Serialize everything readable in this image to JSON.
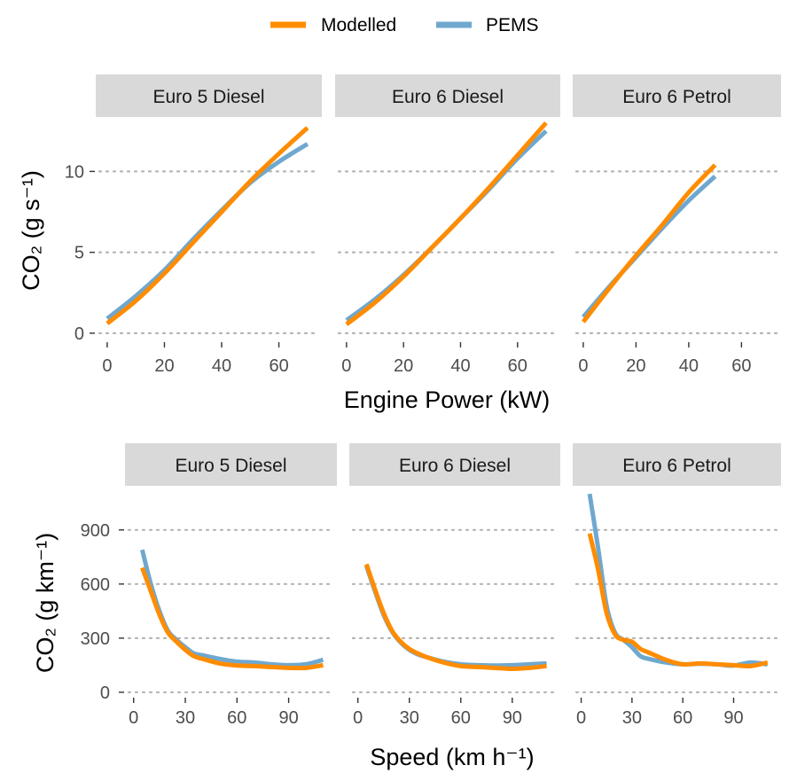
{
  "legend": {
    "items": [
      {
        "label": "Modelled",
        "color": "#ff8c00"
      },
      {
        "label": "PEMS",
        "color": "#6fa8cf"
      }
    ]
  },
  "chart_data": [
    {
      "type": "line",
      "xlabel": "Engine Power (kW)",
      "ylabel": "CO₂ (g s⁻¹)",
      "xlim": [
        -4,
        75
      ],
      "ylim": [
        -0.5,
        13.2
      ],
      "xticks": [
        0,
        20,
        40,
        60
      ],
      "yticks": [
        0,
        5,
        10
      ],
      "grid": "horizontal dotted",
      "legend_position": "top",
      "panels": [
        {
          "title": "Euro 5 Diesel",
          "series": [
            {
              "name": "Modelled",
              "x": [
                0,
                10,
                20,
                30,
                40,
                50,
                60,
                70
              ],
              "y": [
                0.6,
                2.0,
                3.7,
                5.6,
                7.5,
                9.4,
                11.1,
                12.7
              ]
            },
            {
              "name": "PEMS",
              "x": [
                0,
                10,
                20,
                30,
                40,
                50,
                60,
                70
              ],
              "y": [
                0.9,
                2.3,
                3.9,
                5.8,
                7.6,
                9.3,
                10.6,
                11.7
              ]
            }
          ]
        },
        {
          "title": "Euro 6 Diesel",
          "series": [
            {
              "name": "Modelled",
              "x": [
                0,
                10,
                20,
                30,
                40,
                50,
                60,
                70
              ],
              "y": [
                0.55,
                1.9,
                3.5,
                5.3,
                7.1,
                9.0,
                11.0,
                13.0
              ]
            },
            {
              "name": "PEMS",
              "x": [
                0,
                10,
                20,
                30,
                40,
                50,
                60,
                70
              ],
              "y": [
                0.8,
                2.1,
                3.6,
                5.3,
                7.1,
                8.9,
                10.8,
                12.5
              ]
            }
          ]
        },
        {
          "title": "Euro 6 Petrol",
          "series": [
            {
              "name": "Modelled",
              "x": [
                0,
                10,
                20,
                30,
                40,
                50
              ],
              "y": [
                0.7,
                2.8,
                4.8,
                6.7,
                8.7,
                10.4
              ]
            },
            {
              "name": "PEMS",
              "x": [
                0,
                10,
                20,
                30,
                40,
                50
              ],
              "y": [
                1.0,
                2.9,
                4.7,
                6.5,
                8.2,
                9.7
              ]
            }
          ]
        }
      ]
    },
    {
      "type": "line",
      "xlabel": "Speed (km h⁻¹)",
      "ylabel": "CO₂ (g km⁻¹)",
      "xlim": [
        -5,
        118
      ],
      "ylim": [
        -25,
        1130
      ],
      "xticks": [
        0,
        30,
        60,
        90
      ],
      "yticks": [
        0,
        300,
        600,
        900
      ],
      "grid": "horizontal dotted",
      "panels": [
        {
          "title": "Euro 5 Diesel",
          "series": [
            {
              "name": "Modelled",
              "x": [
                5,
                10,
                15,
                20,
                25,
                30,
                35,
                40,
                50,
                60,
                70,
                80,
                90,
                100,
                110
              ],
              "y": [
                690,
                560,
                430,
                330,
                280,
                235,
                200,
                185,
                160,
                148,
                145,
                140,
                135,
                135,
                150
              ]
            },
            {
              "name": "PEMS",
              "x": [
                5,
                10,
                15,
                20,
                25,
                30,
                35,
                40,
                50,
                60,
                70,
                80,
                90,
                100,
                110
              ],
              "y": [
                790,
                600,
                450,
                340,
                290,
                250,
                215,
                205,
                185,
                170,
                165,
                155,
                150,
                155,
                180
              ]
            }
          ]
        },
        {
          "title": "Euro 6 Diesel",
          "series": [
            {
              "name": "Modelled",
              "x": [
                5,
                10,
                15,
                20,
                25,
                30,
                35,
                40,
                50,
                60,
                70,
                80,
                90,
                100,
                110
              ],
              "y": [
                710,
                570,
                440,
                340,
                280,
                240,
                215,
                195,
                165,
                145,
                140,
                135,
                130,
                135,
                145
              ]
            },
            {
              "name": "PEMS",
              "x": [
                5,
                10,
                15,
                20,
                25,
                30,
                35,
                40,
                50,
                60,
                70,
                80,
                90,
                100,
                110
              ],
              "y": [
                700,
                560,
                430,
                335,
                275,
                235,
                210,
                195,
                170,
                155,
                150,
                148,
                150,
                155,
                160
              ]
            }
          ]
        },
        {
          "title": "Euro 6 Petrol",
          "series": [
            {
              "name": "Modelled",
              "x": [
                5,
                10,
                15,
                20,
                25,
                30,
                35,
                40,
                50,
                60,
                70,
                80,
                90,
                100,
                110
              ],
              "y": [
                880,
                680,
                440,
                320,
                290,
                280,
                240,
                220,
                180,
                155,
                160,
                155,
                150,
                145,
                165
              ]
            },
            {
              "name": "PEMS",
              "x": [
                5,
                10,
                15,
                20,
                25,
                30,
                35,
                40,
                50,
                60,
                70,
                80,
                90,
                100,
                110
              ],
              "y": [
                1100,
                800,
                480,
                330,
                290,
                250,
                200,
                185,
                165,
                155,
                158,
                155,
                148,
                165,
                155
              ]
            }
          ]
        }
      ]
    }
  ]
}
